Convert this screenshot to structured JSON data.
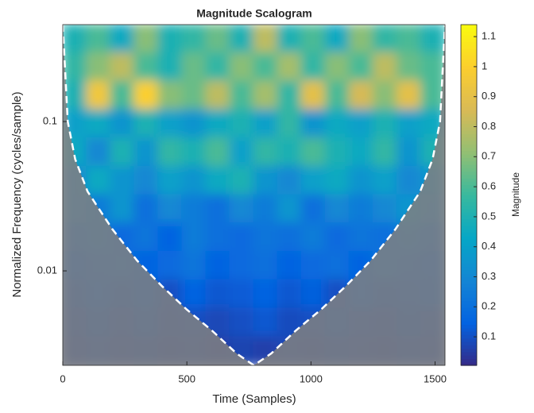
{
  "chart_data": {
    "type": "scalogram",
    "title": "Magnitude Scalogram",
    "x_label": "Time (Samples)",
    "y_label": "Normalized Frequency  (cycles/sample)",
    "colorbar_label": "Magnitude",
    "colormap": "parula",
    "xlim": [
      0,
      1540
    ],
    "xticks": [
      0,
      500,
      1000,
      1500
    ],
    "ylim": [
      0.00233,
      0.446
    ],
    "yticks": [
      0.01,
      0.1
    ],
    "y_scale": "log",
    "clim": [
      0.005,
      1.14
    ],
    "cticks": [
      0.1,
      0.2,
      0.3,
      0.4,
      0.5,
      0.6,
      0.7,
      0.8,
      0.9,
      1,
      1.1
    ],
    "z": [
      [
        0.5,
        0.6,
        0.45,
        0.7,
        0.5,
        0.55,
        0.65,
        0.5,
        0.8,
        0.5,
        0.6,
        0.45,
        0.7,
        0.55,
        0.6,
        0.5
      ],
      [
        0.55,
        0.7,
        0.8,
        0.6,
        0.5,
        0.65,
        0.55,
        0.7,
        0.6,
        0.75,
        0.55,
        0.7,
        0.6,
        0.8,
        0.65,
        0.6
      ],
      [
        0.5,
        0.95,
        0.6,
        1.0,
        0.7,
        0.65,
        0.8,
        0.6,
        0.75,
        0.55,
        0.9,
        0.6,
        0.85,
        0.7,
        0.9,
        0.6
      ],
      [
        0.4,
        0.45,
        0.35,
        0.5,
        0.4,
        0.35,
        0.45,
        0.5,
        0.4,
        0.55,
        0.35,
        0.45,
        0.4,
        0.5,
        0.4,
        0.45
      ],
      [
        0.45,
        0.3,
        0.5,
        0.35,
        0.55,
        0.5,
        0.6,
        0.4,
        0.55,
        0.5,
        0.6,
        0.5,
        0.45,
        0.55,
        0.35,
        0.5
      ],
      [
        0.3,
        0.45,
        0.35,
        0.3,
        0.4,
        0.35,
        0.45,
        0.5,
        0.35,
        0.3,
        0.4,
        0.45,
        0.35,
        0.4,
        0.3,
        0.35
      ],
      [
        0.3,
        0.25,
        0.35,
        0.2,
        0.3,
        0.25,
        0.2,
        0.3,
        0.25,
        0.35,
        0.2,
        0.3,
        0.25,
        0.3,
        0.35,
        0.3
      ],
      [
        0.2,
        0.25,
        0.18,
        0.22,
        0.15,
        0.25,
        0.2,
        0.18,
        0.22,
        0.2,
        0.25,
        0.18,
        0.22,
        0.2,
        0.25,
        0.2
      ],
      [
        0.15,
        0.18,
        0.2,
        0.15,
        0.18,
        0.22,
        0.15,
        0.18,
        0.2,
        0.15,
        0.18,
        0.2,
        0.15,
        0.22,
        0.18,
        0.15
      ],
      [
        0.12,
        0.15,
        0.12,
        0.14,
        0.1,
        0.15,
        0.12,
        0.13,
        0.15,
        0.12,
        0.14,
        0.1,
        0.15,
        0.12,
        0.13,
        0.14
      ],
      [
        0.1,
        0.12,
        0.1,
        0.12,
        0.09,
        0.1,
        0.08,
        0.1,
        0.12,
        0.09,
        0.1,
        0.12,
        0.1,
        0.09,
        0.11,
        0.1
      ],
      [
        0.08,
        0.1,
        0.08,
        0.09,
        0.07,
        0.08,
        0.06,
        0.07,
        0.06,
        0.08,
        0.07,
        0.09,
        0.08,
        0.07,
        0.09,
        0.08
      ]
    ],
    "coi": {
      "x": [
        0,
        20,
        50,
        100,
        200,
        300,
        400,
        500,
        600,
        700,
        770,
        840,
        940,
        1040,
        1140,
        1240,
        1340,
        1440,
        1490,
        1520,
        1540
      ],
      "y": [
        0.446,
        0.1,
        0.056,
        0.034,
        0.019,
        0.0117,
        0.0079,
        0.0055,
        0.004,
        0.0028,
        0.00233,
        0.0028,
        0.004,
        0.0055,
        0.0079,
        0.0117,
        0.019,
        0.034,
        0.056,
        0.1,
        0.446
      ]
    }
  }
}
